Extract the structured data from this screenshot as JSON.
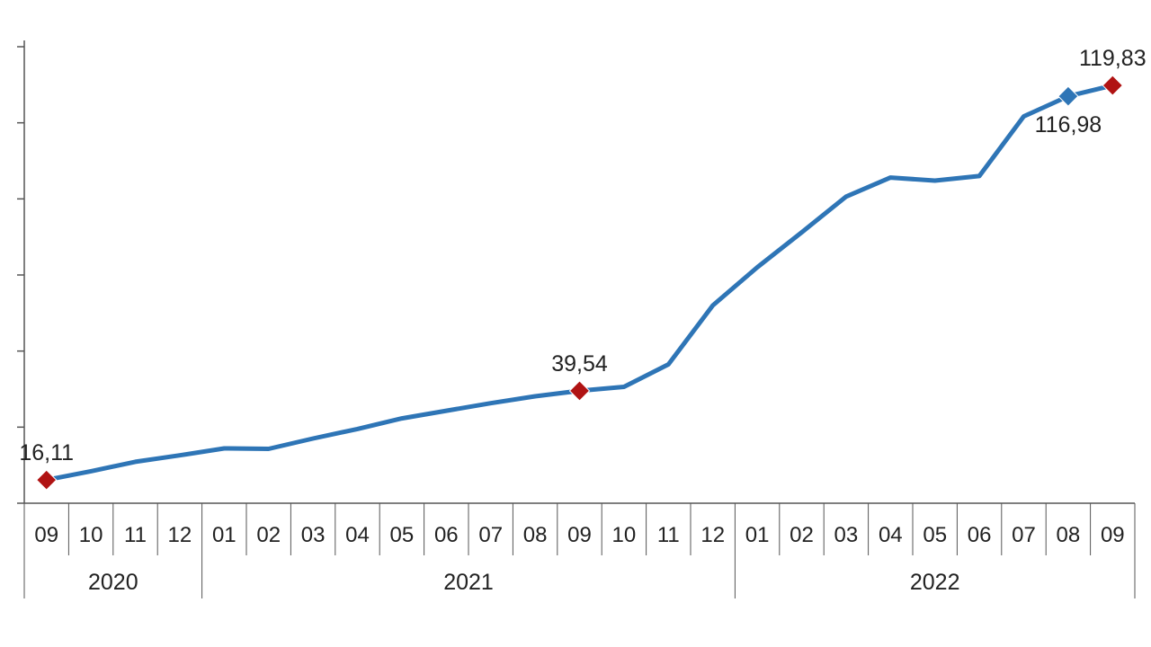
{
  "chart_data": {
    "type": "line",
    "title": "",
    "xlabel": "",
    "ylabel": "",
    "ylim": [
      10,
      130
    ],
    "y_tick_count": 7,
    "grid": false,
    "legend": "none",
    "categories": [
      "09",
      "10",
      "11",
      "12",
      "01",
      "02",
      "03",
      "04",
      "05",
      "06",
      "07",
      "08",
      "09",
      "10",
      "11",
      "12",
      "01",
      "02",
      "03",
      "04",
      "05",
      "06",
      "07",
      "08",
      "09"
    ],
    "year_groups": [
      {
        "label": "2020",
        "count": 4
      },
      {
        "label": "2021",
        "count": 12
      },
      {
        "label": "2022",
        "count": 9
      }
    ],
    "series": [
      {
        "values": [
          16.11,
          18.4,
          20.9,
          22.6,
          24.4,
          24.3,
          27.0,
          29.5,
          32.3,
          34.3,
          36.3,
          38.1,
          39.54,
          40.6,
          46.5,
          62.0,
          72.0,
          81.2,
          90.6,
          95.6,
          94.8,
          96.0,
          111.7,
          116.98,
          119.83
        ],
        "color": "#2e75b6"
      }
    ],
    "markers": [
      {
        "index": 0,
        "label": "16,11",
        "color": "#b01313",
        "label_pos": "above"
      },
      {
        "index": 12,
        "label": "39,54",
        "color": "#b01313",
        "label_pos": "above"
      },
      {
        "index": 23,
        "label": "116,98",
        "color": "#2e75b6",
        "label_pos": "below"
      },
      {
        "index": 24,
        "label": "119,83",
        "color": "#b01313",
        "label_pos": "above"
      }
    ]
  }
}
